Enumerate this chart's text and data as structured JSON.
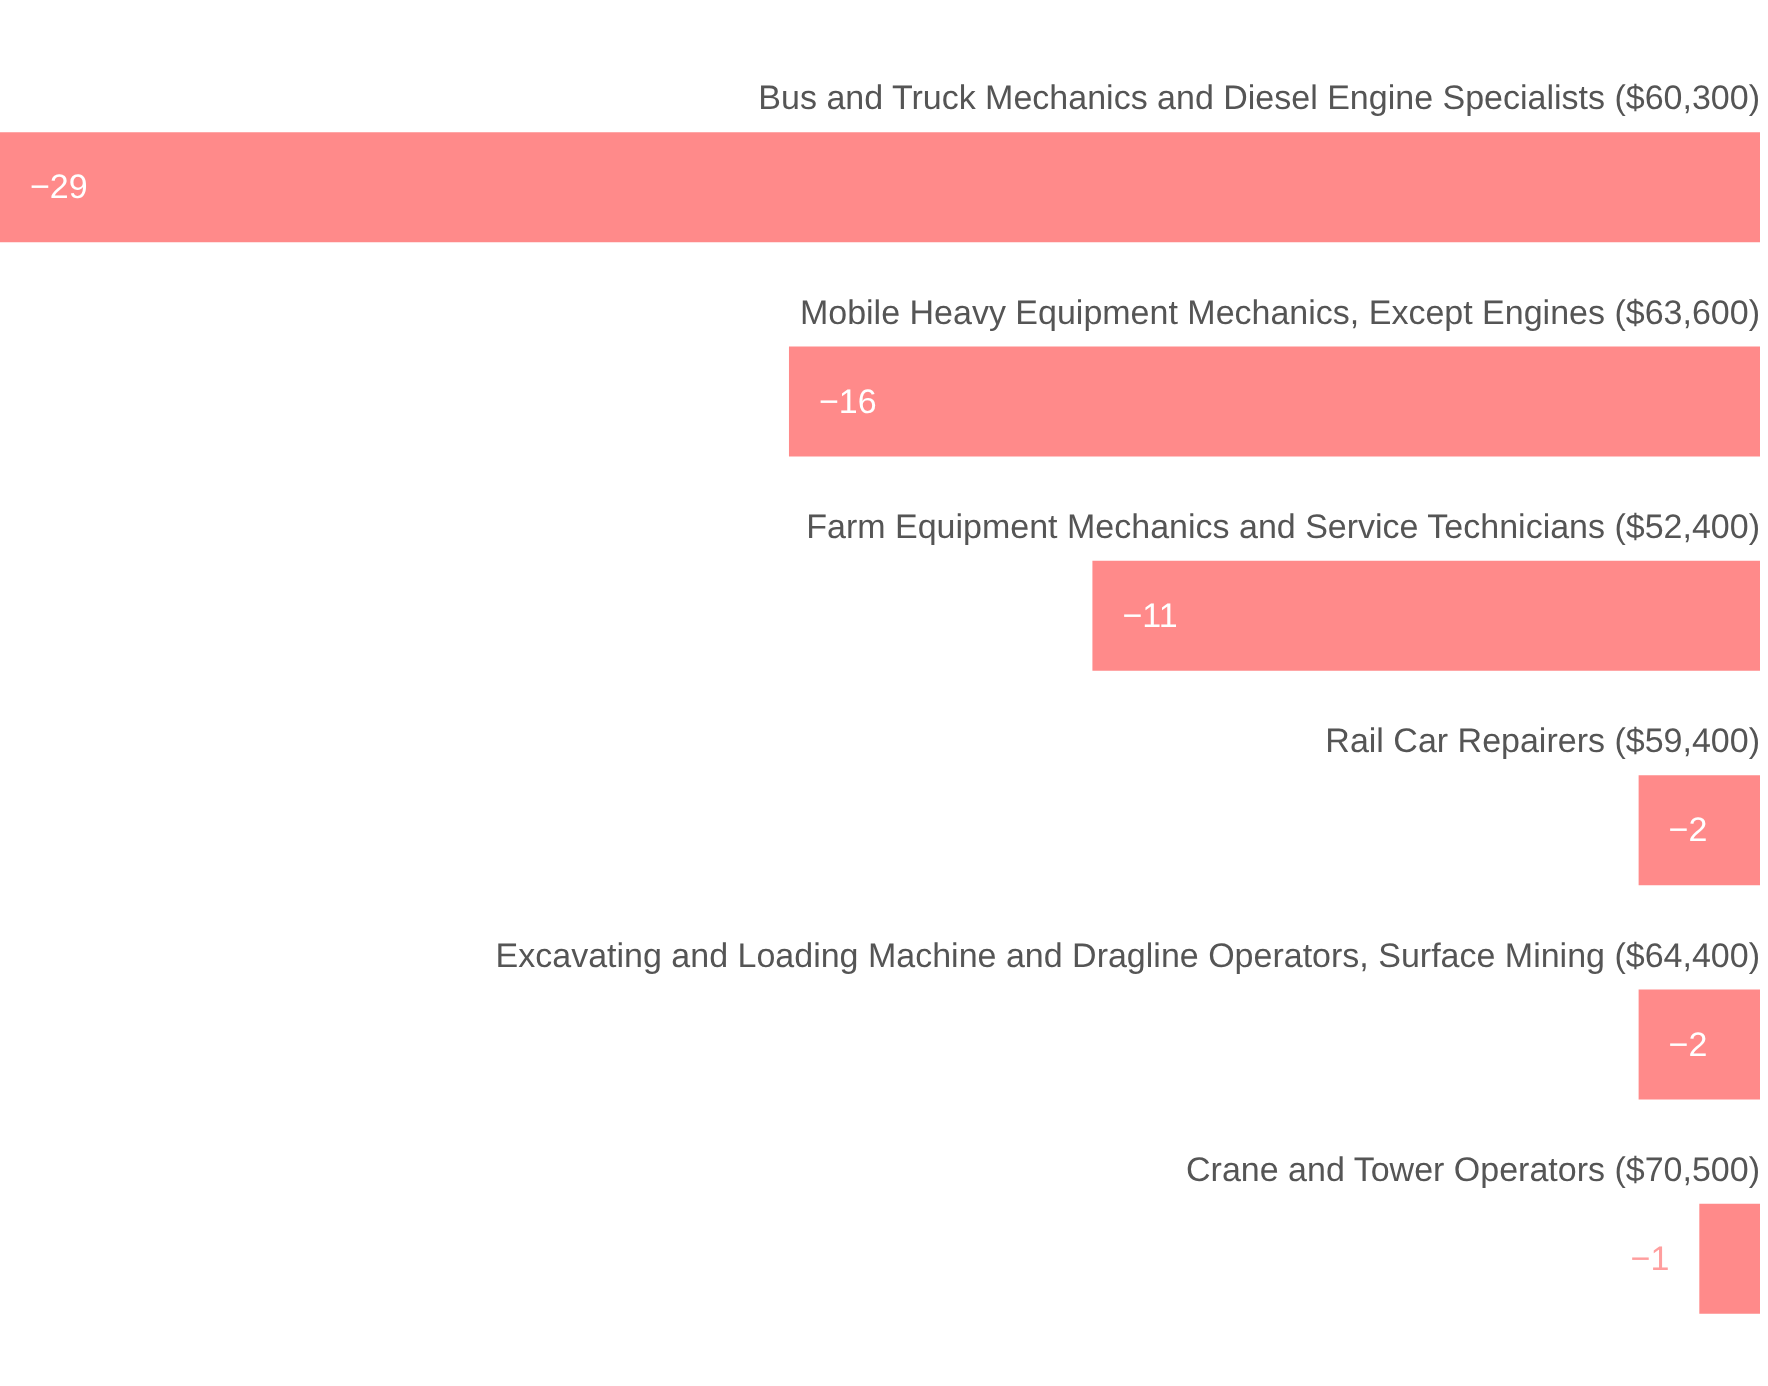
{
  "chart_data": {
    "type": "bar",
    "orientation": "horizontal",
    "categories": [
      "Bus and Truck Mechanics and Diesel Engine Specialists ($60,300)",
      "Mobile Heavy Equipment Mechanics, Except Engines ($63,600)",
      "Farm Equipment Mechanics and Service Technicians ($52,400)",
      "Rail Car Repairers ($59,400)",
      "Excavating and Loading Machine and Dragline Operators, Surface Mining ($64,400)",
      "Crane and Tower Operators ($70,500)"
    ],
    "values": [
      -29,
      -16,
      -11,
      -2,
      -2,
      -1
    ],
    "color": "#ff8a8a",
    "xlim": [
      -29,
      0
    ],
    "data_labels": true,
    "grid": false
  }
}
